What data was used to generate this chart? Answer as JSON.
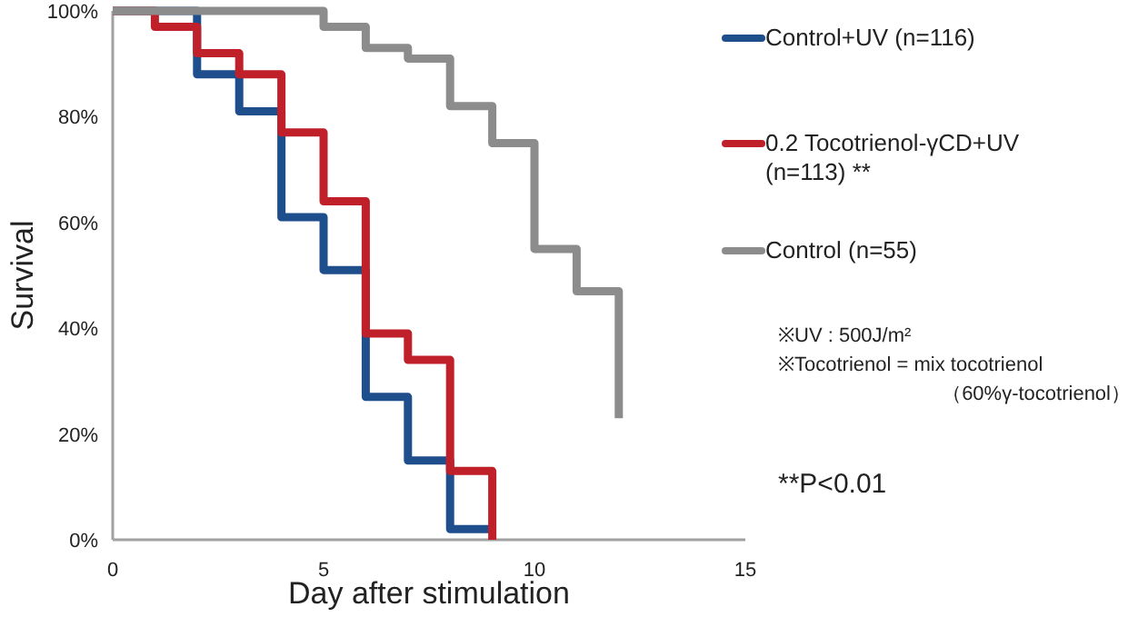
{
  "chart_data": {
    "type": "step",
    "xlabel": "Day after stimulation",
    "ylabel": "Survival",
    "xlim": [
      0,
      15
    ],
    "ylim": [
      0,
      100
    ],
    "xticks": [
      0,
      5,
      10,
      15
    ],
    "yticks": [
      {
        "value": 0,
        "label": "0%"
      },
      {
        "value": 20,
        "label": "20%"
      },
      {
        "value": 40,
        "label": "40%"
      },
      {
        "value": 60,
        "label": "60%"
      },
      {
        "value": 80,
        "label": "80%"
      },
      {
        "value": 100,
        "label": "100%"
      }
    ],
    "legend": "right",
    "grid": false,
    "series": [
      {
        "name": "Control+UV (n=116)",
        "color": "#1f4e8c",
        "x": [
          0,
          2,
          3,
          4,
          5,
          6,
          7,
          8,
          9
        ],
        "values": [
          100,
          88,
          81,
          61,
          51,
          27,
          15,
          2,
          2
        ]
      },
      {
        "name": "0.2 Tocotrienol-γCD+UV (n=113) **",
        "color": "#c0202a",
        "x": [
          0,
          1,
          2,
          3,
          4,
          5,
          6,
          7,
          8,
          9
        ],
        "values": [
          100,
          97,
          92,
          88,
          77,
          64,
          39,
          34,
          13,
          0
        ]
      },
      {
        "name": "Control (n=55)",
        "color": "#8c8c8c",
        "x": [
          0,
          5,
          6,
          7,
          8,
          9,
          10,
          11,
          12
        ],
        "values": [
          100,
          97,
          93,
          91,
          82,
          75,
          55,
          47,
          23
        ]
      }
    ],
    "annotations": [
      "※UV : 500J/m²",
      "※Tocotrienol = mix tocotrienol",
      "（60%γ-tocotrienol）",
      "**P<0.01"
    ]
  }
}
